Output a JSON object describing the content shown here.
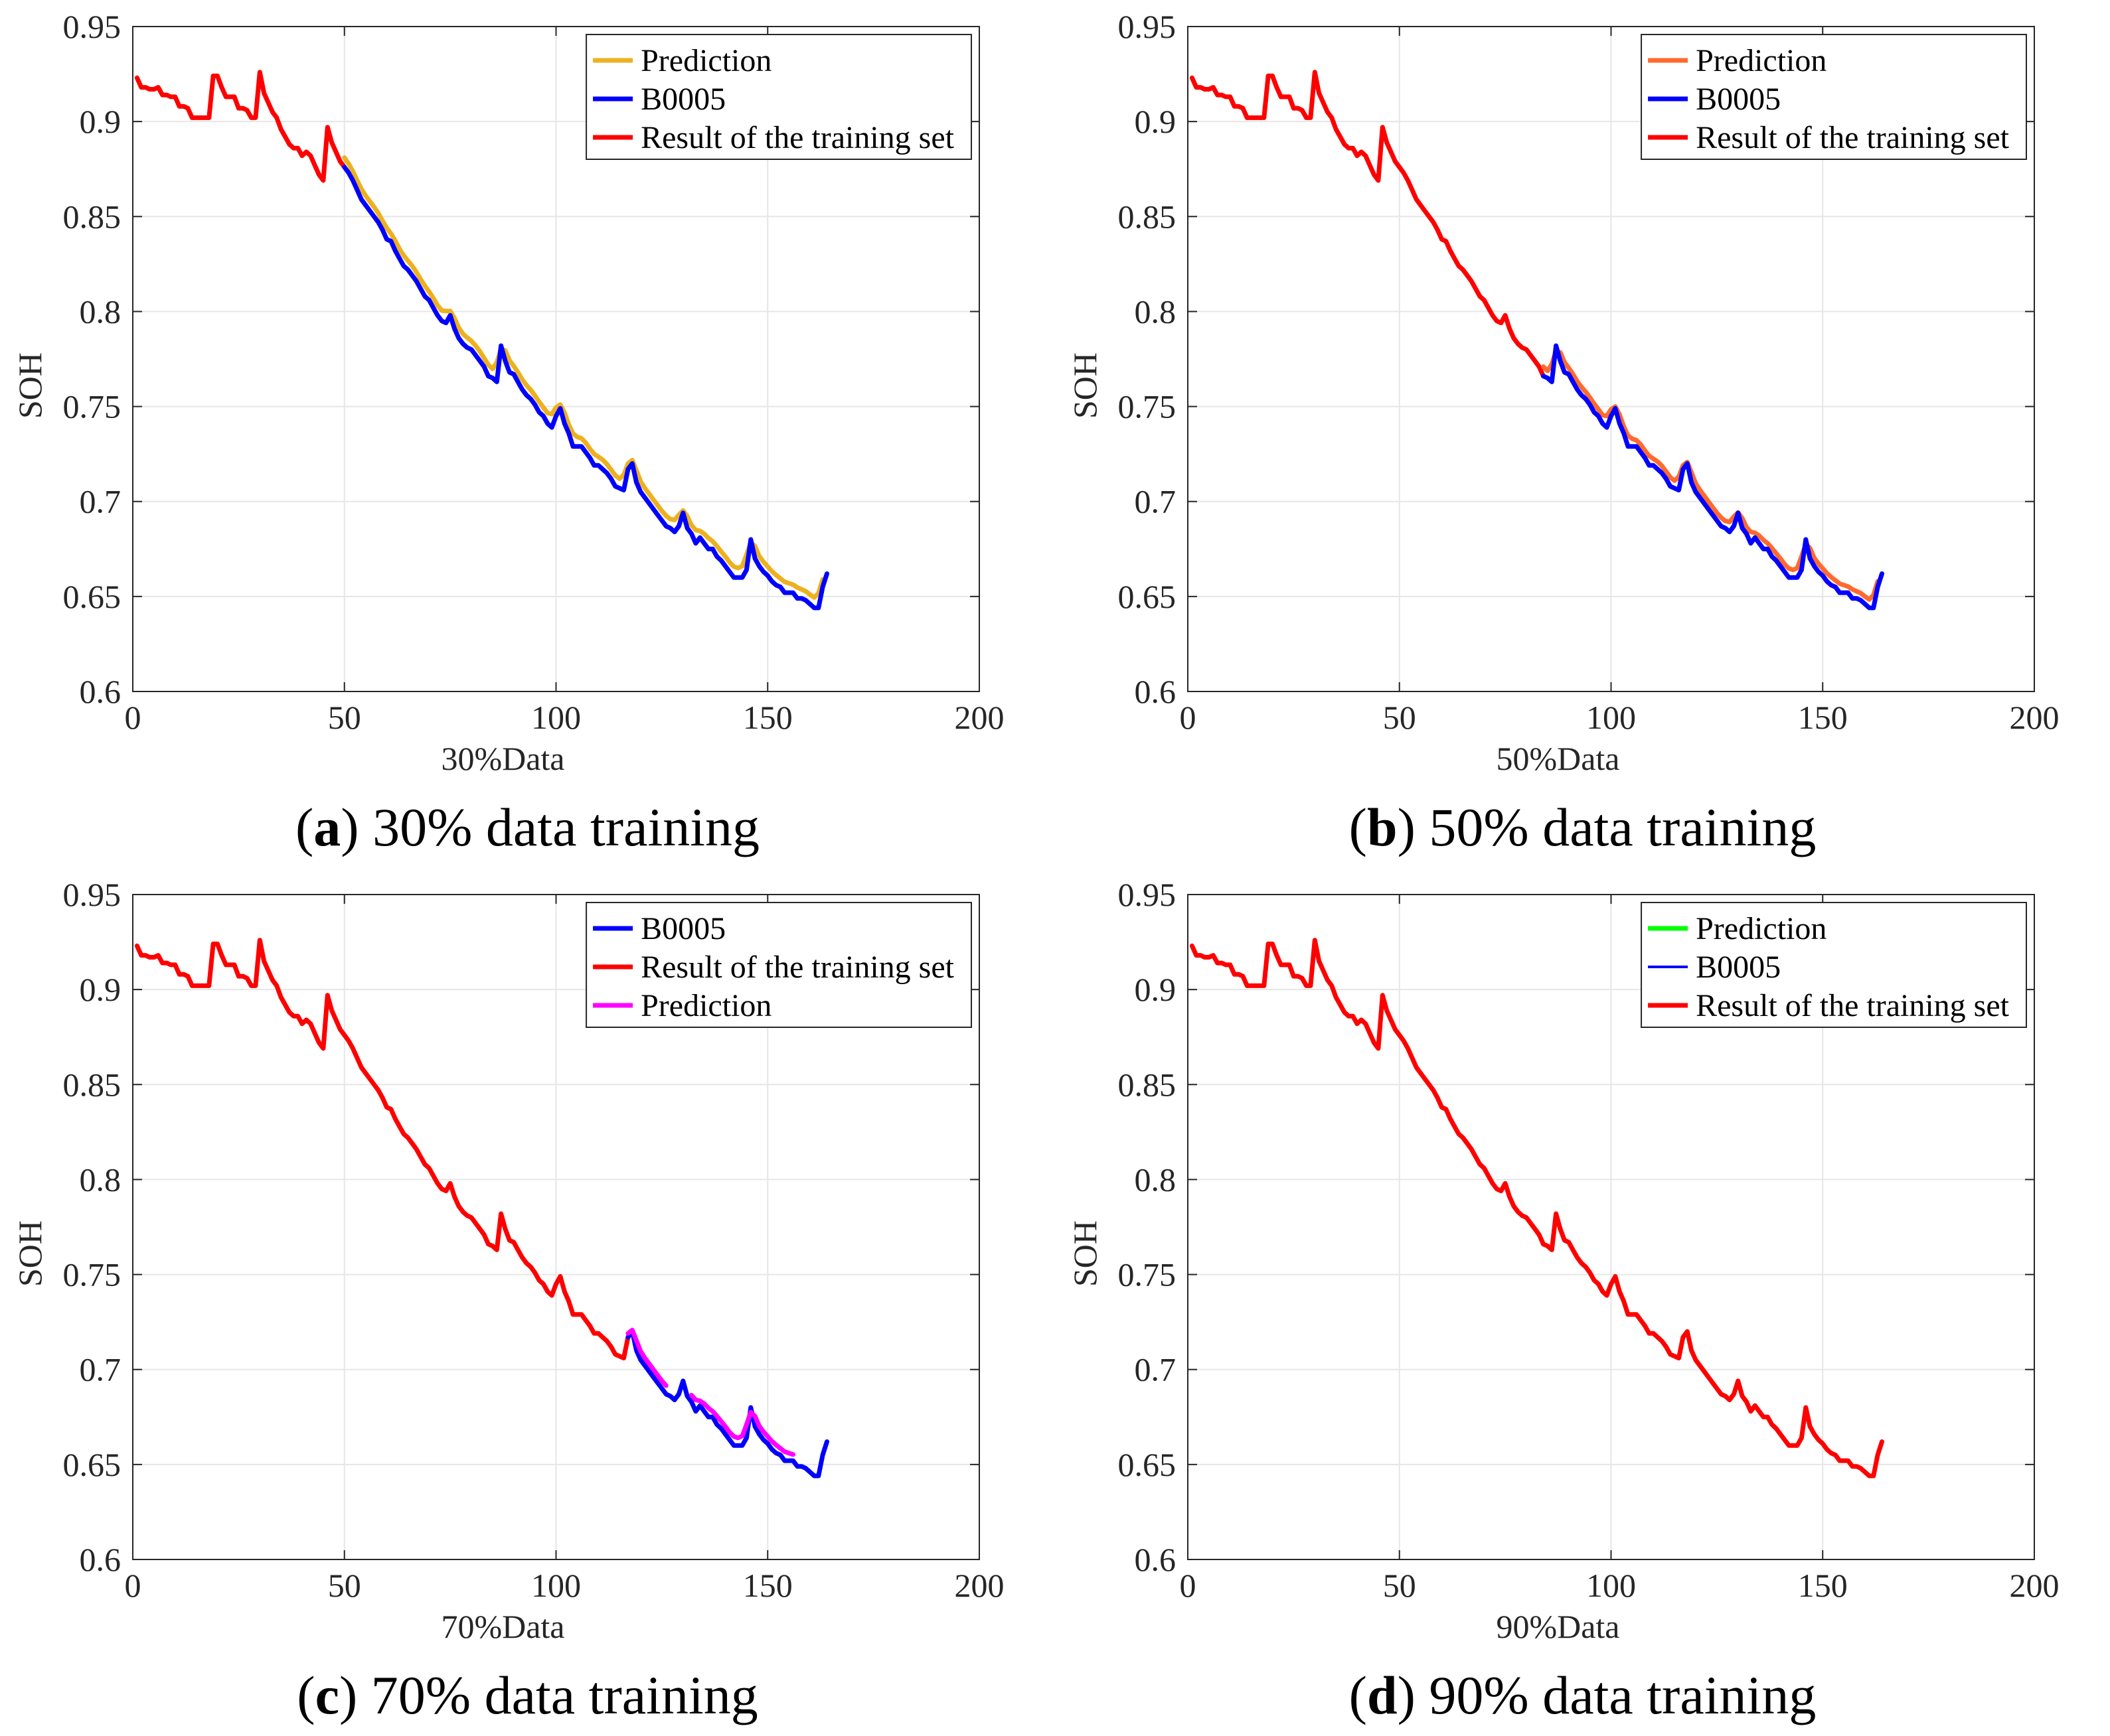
{
  "figure": {
    "panels": [
      {
        "caption": {
          "letter": "a",
          "text": "30% data training"
        },
        "chart_data": {
          "type": "line",
          "xlabel": "30%Data",
          "ylabel": "SOH",
          "xlim": [
            0,
            200
          ],
          "ylim": [
            0.6,
            0.95
          ],
          "xticks": [
            "0",
            "50",
            "100",
            "150",
            "200"
          ],
          "yticks": [
            "0.6",
            "0.65",
            "0.7",
            "0.75",
            "0.8",
            "0.85",
            "0.9",
            "0.95"
          ],
          "legend_position": "top-right",
          "series": [
            {
              "name": "Prediction",
              "color": "#EDB120",
              "x_start": 50,
              "x_end": 165,
              "offset": 0.005,
              "smooth": true
            },
            {
              "name": "B0005",
              "color": "#0000FF",
              "x_start": 50,
              "x_end": 166,
              "offset": 0
            },
            {
              "name": "Result of the training set",
              "color": "#FF0000",
              "x_start": 1,
              "x_end": 50,
              "offset": 0
            }
          ],
          "draw_order": [
            "Result of the training set",
            "Prediction",
            "B0005"
          ]
        }
      },
      {
        "caption": {
          "letter": "b",
          "text": "50% data training"
        },
        "chart_data": {
          "type": "line",
          "xlabel": "50%Data",
          "ylabel": "SOH",
          "xlim": [
            0,
            200
          ],
          "ylim": [
            0.6,
            0.95
          ],
          "xticks": [
            "0",
            "50",
            "100",
            "150",
            "200"
          ],
          "yticks": [
            "0.6",
            "0.65",
            "0.7",
            "0.75",
            "0.8",
            "0.85",
            "0.9",
            "0.95"
          ],
          "legend_position": "top-right",
          "series": [
            {
              "name": "Prediction",
              "color": "#FF6A2F",
              "x_start": 84,
              "x_end": 165,
              "offset": 0.004,
              "smooth": true
            },
            {
              "name": "B0005",
              "color": "#0000FF",
              "x_start": 84,
              "x_end": 166,
              "offset": 0
            },
            {
              "name": "Result of the training set",
              "color": "#FF0000",
              "x_start": 1,
              "x_end": 84,
              "offset": 0
            }
          ],
          "draw_order": [
            "Result of the training set",
            "Prediction",
            "B0005"
          ]
        }
      },
      {
        "caption": {
          "letter": "c",
          "text": "70% data training"
        },
        "chart_data": {
          "type": "line",
          "xlabel": "70%Data",
          "ylabel": "SOH",
          "xlim": [
            0,
            200
          ],
          "ylim": [
            0.6,
            0.95
          ],
          "xticks": [
            "0",
            "50",
            "100",
            "150",
            "200"
          ],
          "yticks": [
            "0.6",
            "0.65",
            "0.7",
            "0.75",
            "0.8",
            "0.85",
            "0.9",
            "0.95"
          ],
          "legend_position": "top-right",
          "series": [
            {
              "name": "B0005",
              "color": "#0000FF",
              "x_start": 117,
              "x_end": 166,
              "offset": 0
            },
            {
              "name": "Result of the training set",
              "color": "#FF0000",
              "x_start": 1,
              "x_end": 117,
              "offset": 0
            },
            {
              "name": "Prediction",
              "color": "#FF00FF",
              "x_start": 117,
              "x_end": 156,
              "offset": 0.004,
              "smooth": true,
              "gap": [
                126,
                132
              ]
            }
          ],
          "draw_order": [
            "Result of the training set",
            "B0005",
            "Prediction"
          ]
        }
      },
      {
        "caption": {
          "letter": "d",
          "text": "90% data training"
        },
        "chart_data": {
          "type": "line",
          "xlabel": "90%Data",
          "ylabel": "SOH",
          "xlim": [
            0,
            200
          ],
          "ylim": [
            0.6,
            0.95
          ],
          "xticks": [
            "0",
            "50",
            "100",
            "150",
            "200"
          ],
          "yticks": [
            "0.6",
            "0.65",
            "0.7",
            "0.75",
            "0.8",
            "0.85",
            "0.9",
            "0.95"
          ],
          "legend_position": "top-right",
          "series": [
            {
              "name": "Prediction",
              "color": "#00FF00",
              "x_start": 164,
              "x_end": 166,
              "offset": 0
            },
            {
              "name": "B0005",
              "color": "#0000FF",
              "x_start": 164,
              "x_end": 166,
              "offset": 0,
              "thin": true
            },
            {
              "name": "Result of the training set",
              "color": "#FF0000",
              "x_start": 1,
              "x_end": 164,
              "offset": 0
            }
          ],
          "draw_order": [
            "Result of the training set",
            "Prediction",
            "B0005"
          ]
        }
      }
    ],
    "soh_curve": {
      "x": [
        1,
        2,
        3,
        4,
        5,
        6,
        7,
        8,
        9,
        10,
        11,
        12,
        13,
        14,
        15,
        16,
        17,
        18,
        19,
        20,
        21,
        22,
        23,
        24,
        25,
        26,
        27,
        28,
        29,
        30,
        31,
        32,
        33,
        34,
        35,
        36,
        37,
        38,
        39,
        40,
        41,
        42,
        43,
        44,
        45,
        46,
        47,
        48,
        49,
        50,
        51,
        52,
        53,
        54,
        55,
        56,
        57,
        58,
        59,
        60,
        61,
        62,
        63,
        64,
        65,
        66,
        67,
        68,
        69,
        70,
        71,
        72,
        73,
        74,
        75,
        76,
        77,
        78,
        79,
        80,
        81,
        82,
        83,
        84,
        85,
        86,
        87,
        88,
        89,
        90,
        91,
        92,
        93,
        94,
        95,
        96,
        97,
        98,
        99,
        100,
        101,
        102,
        103,
        104,
        105,
        106,
        107,
        108,
        109,
        110,
        111,
        112,
        113,
        114,
        115,
        116,
        117,
        118,
        119,
        120,
        121,
        122,
        123,
        124,
        125,
        126,
        127,
        128,
        129,
        130,
        131,
        132,
        133,
        134,
        135,
        136,
        137,
        138,
        139,
        140,
        141,
        142,
        143,
        144,
        145,
        146,
        147,
        148,
        149,
        150,
        151,
        152,
        153,
        154,
        155,
        156,
        157,
        158,
        159,
        160,
        161,
        162,
        163,
        164,
        165,
        166
      ],
      "soh": [
        0.923,
        0.918,
        0.918,
        0.917,
        0.917,
        0.918,
        0.914,
        0.914,
        0.913,
        0.913,
        0.908,
        0.908,
        0.907,
        0.902,
        0.902,
        0.902,
        0.902,
        0.902,
        0.924,
        0.924,
        0.918,
        0.913,
        0.913,
        0.913,
        0.907,
        0.907,
        0.906,
        0.902,
        0.902,
        0.926,
        0.915,
        0.91,
        0.905,
        0.902,
        0.896,
        0.892,
        0.888,
        0.886,
        0.886,
        0.882,
        0.884,
        0.882,
        0.877,
        0.872,
        0.869,
        0.897,
        0.889,
        0.884,
        0.879,
        0.876,
        0.873,
        0.869,
        0.864,
        0.859,
        0.856,
        0.853,
        0.85,
        0.847,
        0.843,
        0.838,
        0.837,
        0.832,
        0.828,
        0.824,
        0.822,
        0.819,
        0.816,
        0.812,
        0.808,
        0.806,
        0.802,
        0.798,
        0.795,
        0.794,
        0.798,
        0.791,
        0.786,
        0.783,
        0.781,
        0.78,
        0.777,
        0.774,
        0.771,
        0.766,
        0.765,
        0.763,
        0.782,
        0.774,
        0.768,
        0.767,
        0.763,
        0.759,
        0.756,
        0.754,
        0.751,
        0.747,
        0.745,
        0.741,
        0.739,
        0.745,
        0.749,
        0.741,
        0.736,
        0.729,
        0.729,
        0.729,
        0.726,
        0.723,
        0.719,
        0.719,
        0.717,
        0.715,
        0.712,
        0.708,
        0.707,
        0.706,
        0.717,
        0.72,
        0.71,
        0.705,
        0.702,
        0.699,
        0.696,
        0.693,
        0.69,
        0.687,
        0.686,
        0.684,
        0.687,
        0.694,
        0.686,
        0.683,
        0.678,
        0.681,
        0.678,
        0.675,
        0.675,
        0.671,
        0.669,
        0.666,
        0.663,
        0.66,
        0.66,
        0.66,
        0.664,
        0.68,
        0.67,
        0.666,
        0.663,
        0.661,
        0.658,
        0.656,
        0.655,
        0.652,
        0.652,
        0.652,
        0.649,
        0.649,
        0.648,
        0.646,
        0.644,
        0.644,
        0.655,
        0.662
      ]
    }
  }
}
